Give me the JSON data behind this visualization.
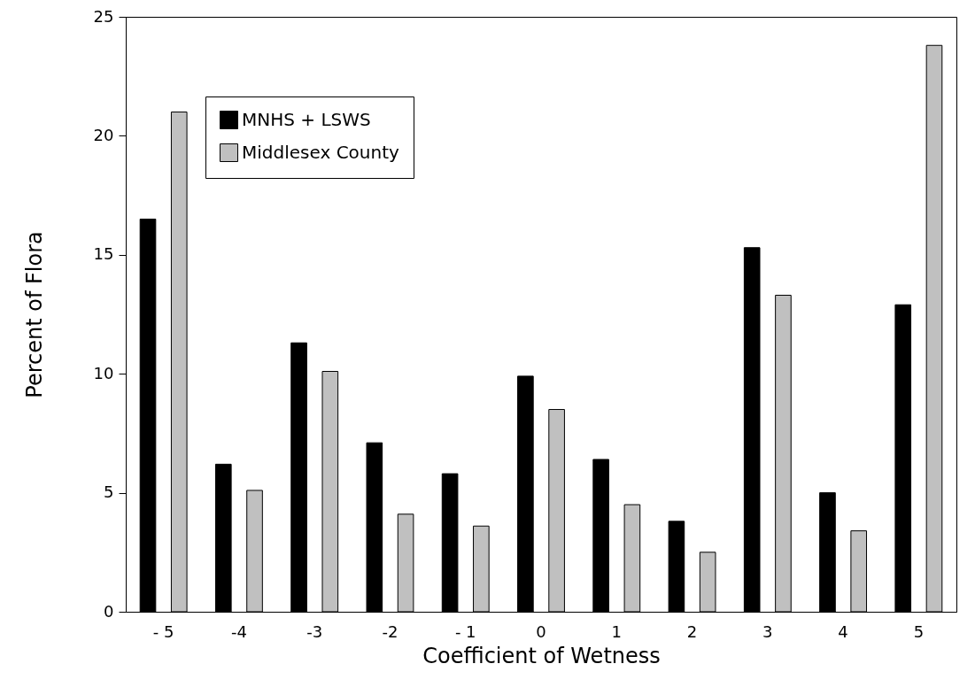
{
  "chart_data": {
    "type": "bar",
    "xlabel": "Coefficient of Wetness",
    "ylabel": "Percent of Flora",
    "categories": [
      "- 5",
      "-4",
      "-3",
      "-2",
      "- 1",
      "0",
      "1",
      "2",
      "3",
      "4",
      "5"
    ],
    "series": [
      {
        "name": "MNHS + LSWS",
        "color": "#000000",
        "values": [
          16.5,
          6.2,
          11.3,
          7.1,
          5.8,
          9.9,
          6.4,
          3.8,
          15.3,
          5.0,
          12.9
        ]
      },
      {
        "name": "Middlesex County",
        "color": "#c0c0c0",
        "values": [
          21.0,
          5.1,
          10.1,
          4.1,
          3.6,
          8.5,
          4.5,
          2.5,
          13.3,
          3.4,
          23.8
        ]
      }
    ],
    "ylim": [
      0,
      25
    ],
    "yticks": [
      0,
      5,
      10,
      15,
      20,
      25
    ],
    "grid": false,
    "legend": "top left"
  }
}
